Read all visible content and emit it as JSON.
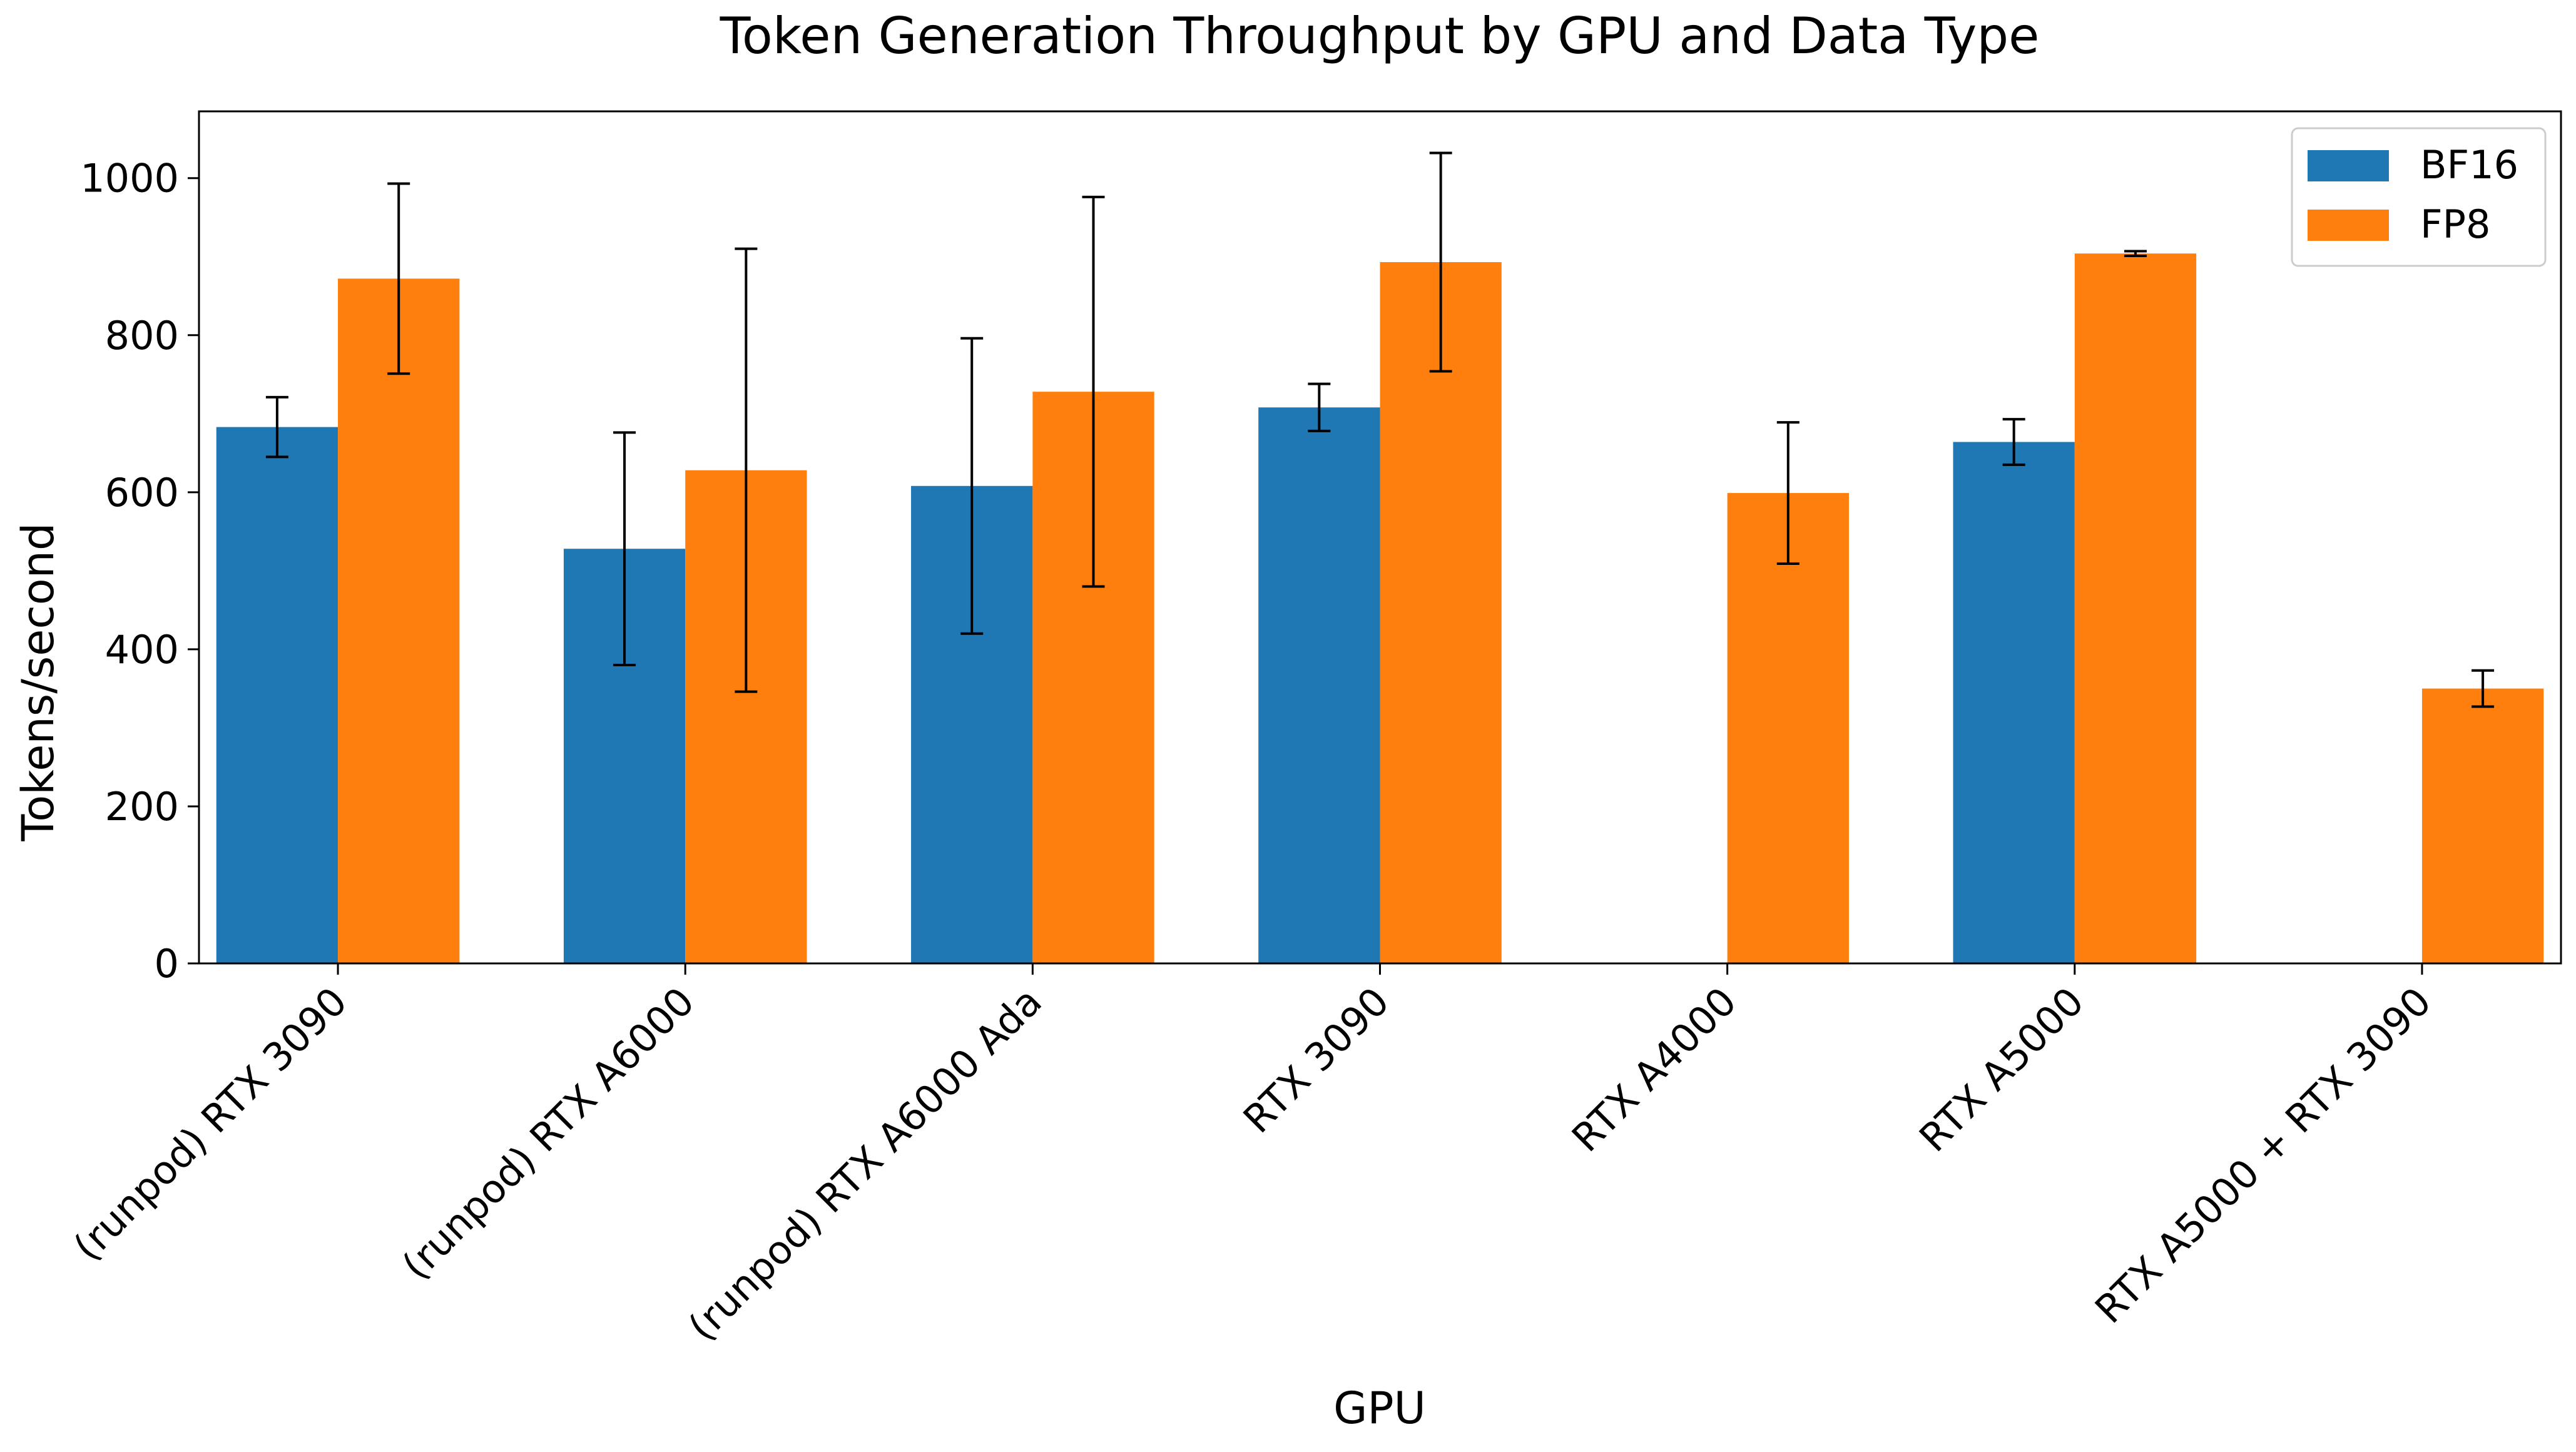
{
  "chart_data": {
    "type": "bar",
    "title": "Token Generation Throughput by GPU and Data Type",
    "xlabel": "GPU",
    "ylabel": "Tokens/second",
    "categories": [
      "(runpod) RTX 3090",
      "(runpod) RTX A6000",
      "(runpod) RTX A6000 Ada",
      "RTX 3090",
      "RTX A4000",
      "RTX A5000",
      "RTX A5000 + RTX 3090"
    ],
    "series": [
      {
        "name": "BF16",
        "color": "#1f77b4",
        "values": [
          683,
          528,
          608,
          708,
          0,
          664,
          0
        ],
        "errors": [
          38,
          148,
          188,
          30,
          0,
          29,
          0
        ]
      },
      {
        "name": "FP8",
        "color": "#ff7f0e",
        "values": [
          872,
          628,
          728,
          893,
          599,
          904,
          350
        ],
        "errors": [
          121,
          282,
          248,
          139,
          90,
          3,
          23
        ]
      }
    ],
    "ylim": [
      0,
      1085
    ],
    "yticks": [
      0,
      200,
      400,
      600,
      800,
      1000
    ],
    "legend": "top-right",
    "grid": false
  }
}
